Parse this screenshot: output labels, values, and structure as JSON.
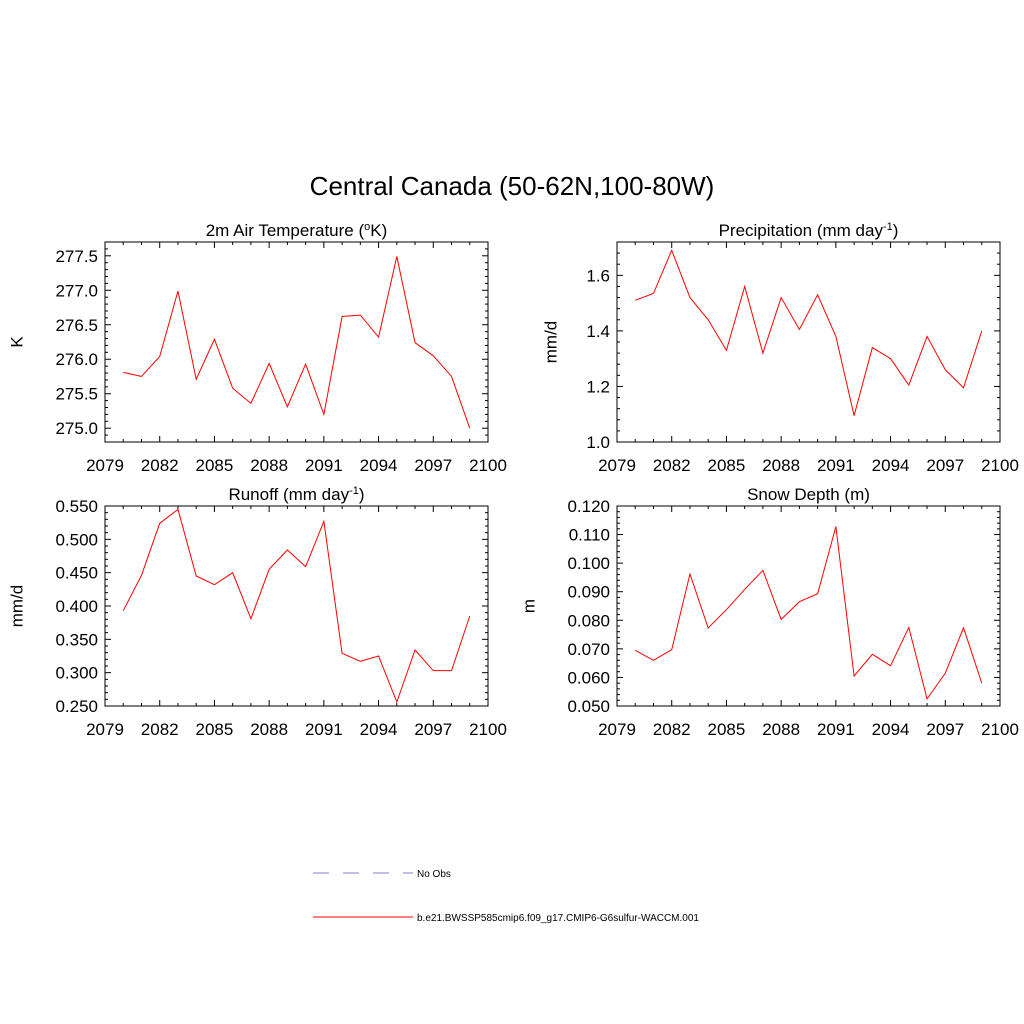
{
  "title": "Central Canada (50-62N,100-80W)",
  "colors": {
    "series": "#ff0000",
    "obs": "#9999dd",
    "axis": "#000000"
  },
  "legend": {
    "entries": [
      {
        "label": "No Obs",
        "style": "dashed",
        "color": "#9999dd"
      },
      {
        "label": "b.e21.BWSSP585cmip6.f09_g17.CMIP6-G6sulfur-WACCM.001",
        "style": "solid",
        "color": "#ff0000"
      }
    ]
  },
  "chart_data": [
    {
      "type": "line",
      "title": "2m Air Temperature",
      "title_unit": "K",
      "title_sup": "o",
      "ylabel": "K",
      "xlim": [
        2079,
        2100
      ],
      "ylim": [
        274.8,
        277.7
      ],
      "xticks": [
        2079,
        2082,
        2085,
        2088,
        2091,
        2094,
        2097,
        2100
      ],
      "yticks": [
        275.0,
        275.5,
        276.0,
        276.5,
        277.0,
        277.5
      ],
      "ytick_labels": [
        "275.0",
        "275.5",
        "276.0",
        "276.5",
        "277.0",
        "277.5"
      ],
      "x": [
        2080,
        2081,
        2082,
        2083,
        2084,
        2085,
        2086,
        2087,
        2088,
        2089,
        2090,
        2091,
        2092,
        2093,
        2094,
        2095,
        2096,
        2097,
        2098,
        2099
      ],
      "series": [
        {
          "values": [
            275.81,
            275.75,
            276.04,
            276.99,
            275.71,
            276.29,
            275.58,
            275.36,
            275.94,
            275.31,
            275.93,
            275.2,
            276.62,
            276.64,
            276.32,
            277.49,
            276.24,
            276.05,
            275.75,
            275.0
          ]
        }
      ]
    },
    {
      "type": "line",
      "title": "Precipitation",
      "title_unit": "mm day",
      "title_sup": "-1",
      "ylabel": "mm/d",
      "xlim": [
        2079,
        2100
      ],
      "ylim": [
        1.0,
        1.72
      ],
      "xticks": [
        2079,
        2082,
        2085,
        2088,
        2091,
        2094,
        2097,
        2100
      ],
      "yticks": [
        1.0,
        1.2,
        1.4,
        1.6
      ],
      "ytick_labels": [
        "1.0",
        "1.2",
        "1.4",
        "1.6"
      ],
      "x": [
        2080,
        2081,
        2082,
        2083,
        2084,
        2085,
        2086,
        2087,
        2088,
        2089,
        2090,
        2091,
        2092,
        2093,
        2094,
        2095,
        2096,
        2097,
        2098,
        2099
      ],
      "series": [
        {
          "values": [
            1.51,
            1.535,
            1.69,
            1.52,
            1.44,
            1.33,
            1.56,
            1.32,
            1.52,
            1.405,
            1.53,
            1.38,
            1.095,
            1.34,
            1.3,
            1.205,
            1.38,
            1.26,
            1.195,
            1.4
          ]
        }
      ]
    },
    {
      "type": "line",
      "title": "Runoff",
      "title_unit": "mm day",
      "title_sup": "-1",
      "ylabel": "mm/d",
      "xlim": [
        2079,
        2100
      ],
      "ylim": [
        0.25,
        0.55
      ],
      "xticks": [
        2079,
        2082,
        2085,
        2088,
        2091,
        2094,
        2097,
        2100
      ],
      "yticks": [
        0.25,
        0.3,
        0.35,
        0.4,
        0.45,
        0.5,
        0.55
      ],
      "ytick_labels": [
        "0.250",
        "0.300",
        "0.350",
        "0.400",
        "0.450",
        "0.500",
        "0.550"
      ],
      "x": [
        2080,
        2081,
        2082,
        2083,
        2084,
        2085,
        2086,
        2087,
        2088,
        2089,
        2090,
        2091,
        2092,
        2093,
        2094,
        2095,
        2096,
        2097,
        2098,
        2099
      ],
      "series": [
        {
          "values": [
            0.393,
            0.446,
            0.524,
            0.545,
            0.445,
            0.432,
            0.45,
            0.381,
            0.455,
            0.484,
            0.459,
            0.527,
            0.329,
            0.317,
            0.325,
            0.256,
            0.334,
            0.303,
            0.303,
            0.385
          ]
        }
      ]
    },
    {
      "type": "line",
      "title": "Snow Depth",
      "title_unit": "m",
      "title_sup": "",
      "ylabel": "m",
      "xlim": [
        2079,
        2100
      ],
      "ylim": [
        0.05,
        0.12
      ],
      "xticks": [
        2079,
        2082,
        2085,
        2088,
        2091,
        2094,
        2097,
        2100
      ],
      "yticks": [
        0.05,
        0.06,
        0.07,
        0.08,
        0.09,
        0.1,
        0.11,
        0.12
      ],
      "ytick_labels": [
        "0.050",
        "0.060",
        "0.070",
        "0.080",
        "0.090",
        "0.100",
        "0.110",
        "0.120"
      ],
      "x": [
        2080,
        2081,
        2082,
        2083,
        2084,
        2085,
        2086,
        2087,
        2088,
        2089,
        2090,
        2091,
        2092,
        2093,
        2094,
        2095,
        2096,
        2097,
        2098,
        2099
      ],
      "series": [
        {
          "values": [
            0.0695,
            0.066,
            0.0697,
            0.0962,
            0.0773,
            0.0837,
            0.0908,
            0.0975,
            0.0803,
            0.0865,
            0.0893,
            0.1128,
            0.0605,
            0.0681,
            0.0641,
            0.0775,
            0.0525,
            0.0615,
            0.0774,
            0.058
          ]
        }
      ]
    }
  ]
}
